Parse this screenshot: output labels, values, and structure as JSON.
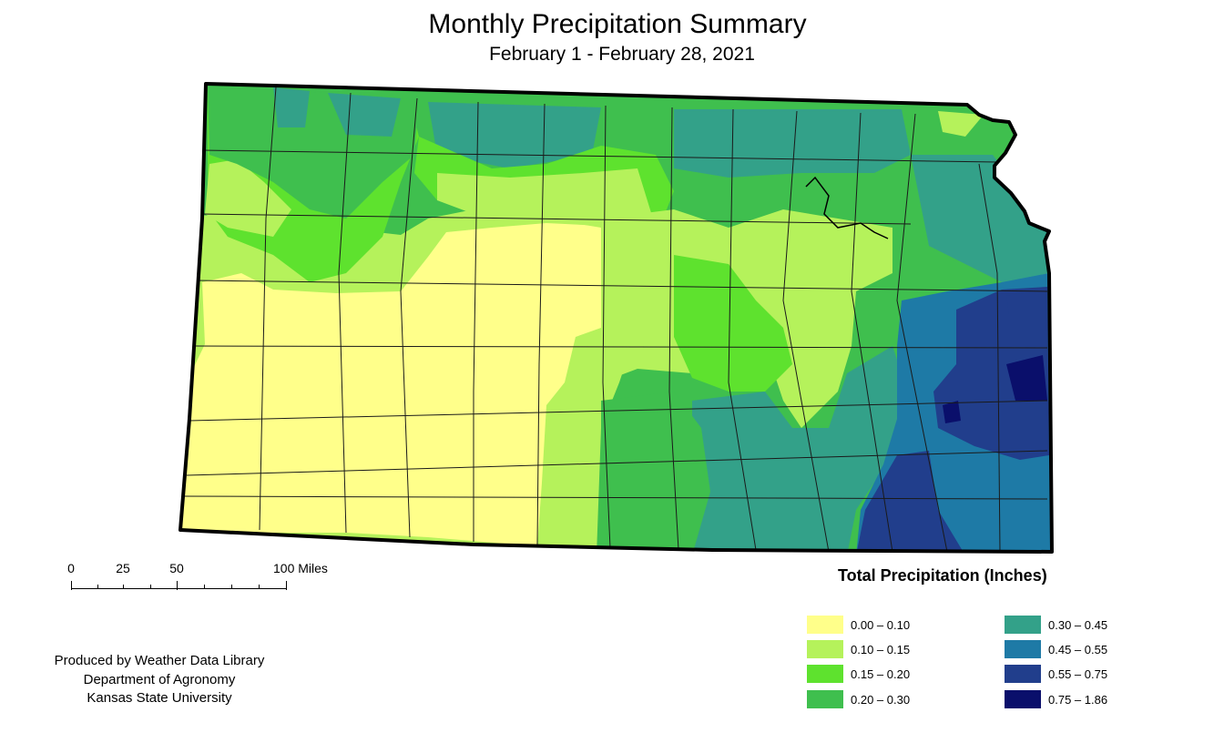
{
  "map": {
    "title": "Monthly Precipitation Summary",
    "subtitle": "February 1 - February 28, 2021",
    "region": "Kansas",
    "scale_bar": {
      "labels": [
        "0",
        "25",
        "50",
        "100 Miles"
      ]
    },
    "legend": {
      "title": "Total Precipitation (Inches)",
      "items": [
        {
          "range": "0.00 – 0.10",
          "color": "#ffff8a"
        },
        {
          "range": "0.10 – 0.15",
          "color": "#b5f25b"
        },
        {
          "range": "0.15 – 0.20",
          "color": "#5ee22e"
        },
        {
          "range": "0.20 – 0.30",
          "color": "#3fbf4e"
        },
        {
          "range": "0.30 – 0.45",
          "color": "#33a189"
        },
        {
          "range": "0.45 – 0.55",
          "color": "#1e7aa6"
        },
        {
          "range": "0.55 – 0.75",
          "color": "#213e8c"
        },
        {
          "range": "0.75 – 1.86",
          "color": "#0a0f6b"
        }
      ]
    },
    "credits": [
      "Produced by Weather Data Library",
      "Department of Agronomy",
      "Kansas State University"
    ]
  }
}
